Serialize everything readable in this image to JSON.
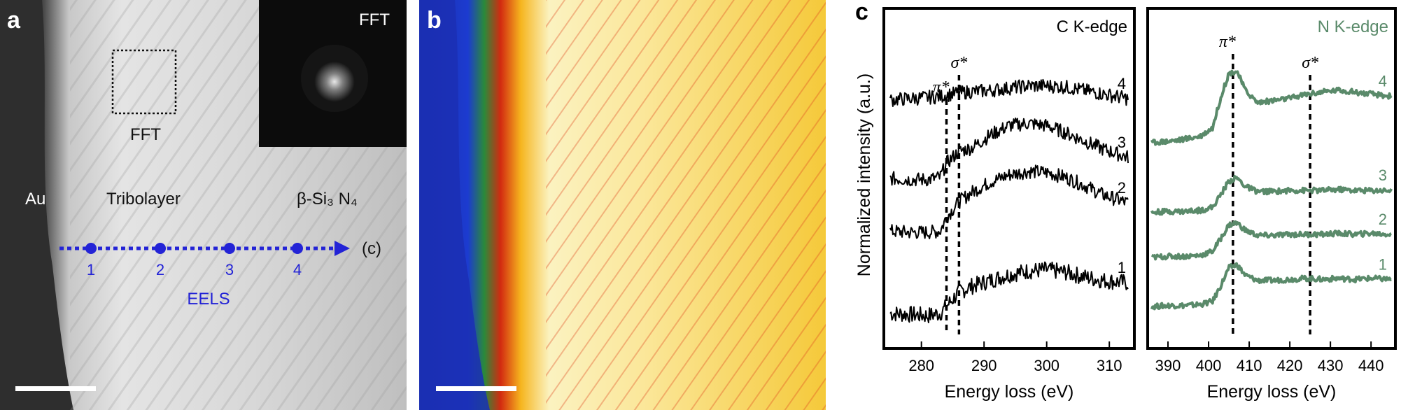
{
  "figure": {
    "panel_a": {
      "label": "a",
      "inset_label": "FFT",
      "box_label": "FFT",
      "region_au": "Au",
      "region_tribolayer": "Tribolayer",
      "region_si3n4": "β-Si₃ N₄",
      "points": [
        "1",
        "2",
        "3",
        "4"
      ],
      "arrow_label": "(c)",
      "eels_label": "EELS"
    },
    "panel_b": {
      "label": "b"
    },
    "panel_c": {
      "label": "c"
    }
  },
  "chart_data": [
    {
      "type": "line",
      "title": "C K-edge",
      "xlabel": "Energy loss (eV)",
      "ylabel": "Normalized intensity (a.u.)",
      "xlim": [
        274,
        314
      ],
      "xticks": [
        280,
        290,
        300,
        310
      ],
      "annotations": [
        {
          "label": "π*",
          "x": 284
        },
        {
          "label": "σ*",
          "x": 286
        }
      ],
      "color": "#000000",
      "series": [
        {
          "name": "1",
          "x": [
            275,
            278,
            281,
            283,
            284,
            286,
            288,
            291,
            294,
            297,
            300,
            303,
            306,
            309,
            313
          ],
          "values": [
            0.3,
            0.29,
            0.28,
            0.3,
            0.36,
            0.48,
            0.53,
            0.58,
            0.63,
            0.66,
            0.67,
            0.65,
            0.61,
            0.58,
            0.56
          ]
        },
        {
          "name": "2",
          "x": [
            275,
            278,
            281,
            283,
            284,
            286,
            288,
            291,
            294,
            297,
            300,
            303,
            306,
            309,
            313
          ],
          "values": [
            1.0,
            0.99,
            0.99,
            1.0,
            1.12,
            1.25,
            1.33,
            1.42,
            1.48,
            1.51,
            1.5,
            1.46,
            1.39,
            1.31,
            1.24
          ]
        },
        {
          "name": "3",
          "x": [
            275,
            278,
            281,
            283,
            284,
            286,
            288,
            291,
            294,
            297,
            300,
            303,
            306,
            309,
            313
          ],
          "values": [
            1.45,
            1.44,
            1.44,
            1.46,
            1.58,
            1.68,
            1.71,
            1.82,
            1.9,
            1.92,
            1.9,
            1.84,
            1.77,
            1.7,
            1.63
          ]
        },
        {
          "name": "4",
          "x": [
            275,
            278,
            281,
            283,
            284,
            286,
            288,
            291,
            294,
            297,
            300,
            303,
            306,
            309,
            313
          ],
          "values": [
            2.12,
            2.13,
            2.14,
            2.15,
            2.16,
            2.18,
            2.19,
            2.2,
            2.22,
            2.24,
            2.24,
            2.23,
            2.2,
            2.17,
            2.13
          ]
        }
      ]
    },
    {
      "type": "line",
      "title": "N K-edge",
      "xlabel": "Energy loss (eV)",
      "xlim": [
        385,
        446
      ],
      "xticks": [
        390,
        400,
        410,
        420,
        430,
        440
      ],
      "annotations": [
        {
          "label": "π*",
          "x": 406
        },
        {
          "label": "σ*",
          "x": 425
        }
      ],
      "color": "#5a8a6a",
      "series": [
        {
          "name": "1",
          "x": [
            386,
            390,
            394,
            398,
            401,
            403,
            405,
            407,
            409,
            412,
            416,
            420,
            424,
            428,
            432,
            436,
            440,
            445
          ],
          "values": [
            0.05,
            0.06,
            0.06,
            0.07,
            0.1,
            0.25,
            0.42,
            0.45,
            0.35,
            0.3,
            0.3,
            0.31,
            0.32,
            0.31,
            0.32,
            0.31,
            0.32,
            0.31
          ]
        },
        {
          "name": "2",
          "x": [
            386,
            390,
            394,
            398,
            401,
            403,
            405,
            407,
            409,
            412,
            416,
            420,
            424,
            428,
            432,
            436,
            440,
            445
          ],
          "values": [
            0.52,
            0.53,
            0.53,
            0.54,
            0.58,
            0.7,
            0.83,
            0.85,
            0.78,
            0.73,
            0.73,
            0.74,
            0.74,
            0.74,
            0.75,
            0.74,
            0.75,
            0.74
          ]
        },
        {
          "name": "3",
          "x": [
            386,
            390,
            394,
            398,
            401,
            403,
            405,
            407,
            409,
            412,
            416,
            420,
            424,
            428,
            432,
            436,
            440,
            445
          ],
          "values": [
            0.95,
            0.96,
            0.96,
            0.97,
            1.0,
            1.12,
            1.25,
            1.28,
            1.2,
            1.15,
            1.15,
            1.16,
            1.16,
            1.16,
            1.17,
            1.16,
            1.16,
            1.16
          ]
        },
        {
          "name": "4",
          "x": [
            386,
            390,
            394,
            398,
            401,
            403,
            405,
            407,
            409,
            412,
            416,
            420,
            424,
            428,
            432,
            436,
            440,
            445
          ],
          "values": [
            1.62,
            1.63,
            1.65,
            1.68,
            1.76,
            2.05,
            2.28,
            2.3,
            2.12,
            2.0,
            2.02,
            2.04,
            2.08,
            2.1,
            2.12,
            2.1,
            2.08,
            2.06
          ]
        }
      ]
    }
  ]
}
